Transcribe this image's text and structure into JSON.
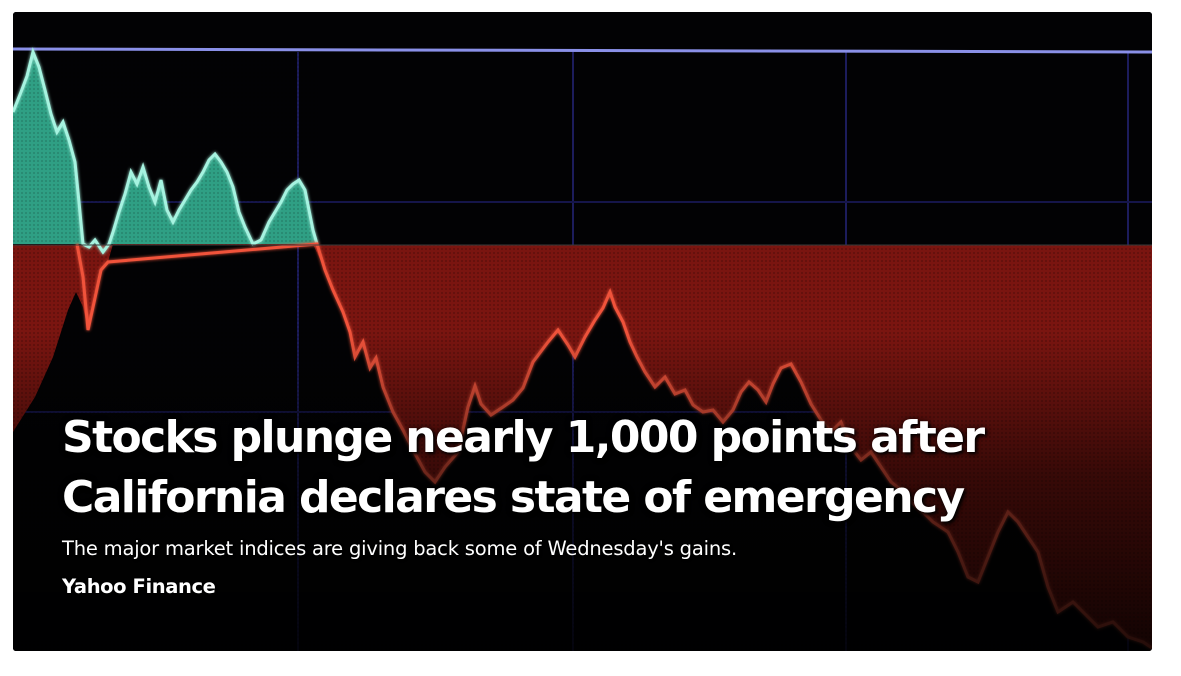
{
  "article": {
    "headline_line1": "Stocks plunge nearly 1,000 points after",
    "headline_line2": "California declares state of emergency",
    "summary": "The major market indices are giving back some of Wednesday's gains.",
    "source": "Yahoo Finance"
  },
  "image": {
    "subject": "stock-market-chart-photo",
    "colors": {
      "gain_fill": "#2f9f84",
      "gain_line": "#a6f3e0",
      "loss_fill": "#7a1510",
      "loss_line": "#f0523a",
      "grid": "#1c1c5c",
      "top_line": "#8a90e8",
      "background": "#020204"
    }
  }
}
